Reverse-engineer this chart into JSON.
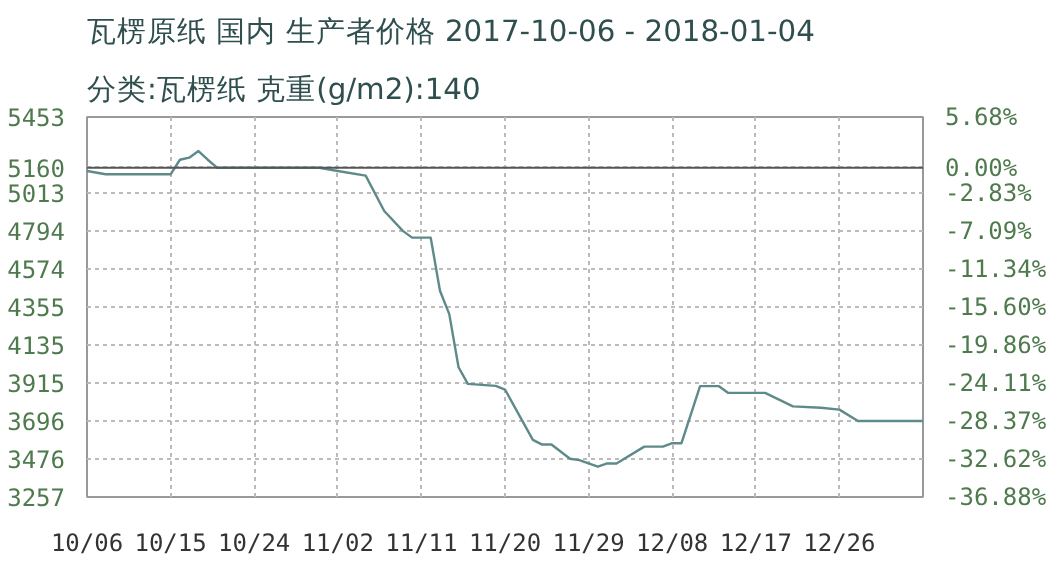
{
  "chart_data": {
    "type": "line",
    "title": "瓦楞原纸 国内 生产者价格 2017-10-06 - 2018-01-04",
    "subtitle": "分类:瓦楞纸 克重(g/m2):140",
    "x": [
      "2017-10-06",
      "2017-10-08",
      "2017-10-15",
      "2017-10-16",
      "2017-10-17",
      "2017-10-18",
      "2017-10-19",
      "2017-10-20",
      "2017-10-31",
      "2017-11-02",
      "2017-11-05",
      "2017-11-07",
      "2017-11-09",
      "2017-11-10",
      "2017-11-12",
      "2017-11-13",
      "2017-11-14",
      "2017-11-15",
      "2017-11-16",
      "2017-11-19",
      "2017-11-20",
      "2017-11-23",
      "2017-11-24",
      "2017-11-25",
      "2017-11-27",
      "2017-11-28",
      "2017-11-30",
      "2017-12-01",
      "2017-12-02",
      "2017-12-05",
      "2017-12-07",
      "2017-12-08",
      "2017-12-09",
      "2017-12-11",
      "2017-12-13",
      "2017-12-14",
      "2017-12-18",
      "2017-12-21",
      "2017-12-24",
      "2017-12-26",
      "2017-12-28",
      "2018-01-04"
    ],
    "series": [
      {
        "color": "#5f8a8a",
        "values": [
          5141,
          5122,
          5122,
          5206,
          5218,
          5256,
          5206,
          5160,
          5160,
          5141,
          5114,
          4910,
          4795,
          4756,
          4756,
          4449,
          4314,
          4007,
          3911,
          3899,
          3878,
          3587,
          3560,
          3560,
          3478,
          3470,
          3432,
          3451,
          3451,
          3548,
          3548,
          3568,
          3568,
          3898,
          3898,
          3859,
          3859,
          3781,
          3773,
          3762,
          3696,
          3696
        ]
      }
    ],
    "xlim": [
      "2017-10-06",
      "2018-01-04"
    ],
    "xticks": [
      {
        "value": "2017-10-06",
        "label": "10/06"
      },
      {
        "value": "2017-10-15",
        "label": "10/15"
      },
      {
        "value": "2017-10-24",
        "label": "10/24"
      },
      {
        "value": "2017-11-02",
        "label": "11/02"
      },
      {
        "value": "2017-11-11",
        "label": "11/11"
      },
      {
        "value": "2017-11-20",
        "label": "11/20"
      },
      {
        "value": "2017-11-29",
        "label": "11/29"
      },
      {
        "value": "2017-12-08",
        "label": "12/08"
      },
      {
        "value": "2017-12-17",
        "label": "12/17"
      },
      {
        "value": "2017-12-26",
        "label": "12/26"
      }
    ],
    "ylim": [
      3257,
      5453
    ],
    "yticks": [
      3257,
      3476,
      3696,
      3915,
      4135,
      4355,
      4574,
      4794,
      5013,
      5160,
      5453
    ],
    "y2lim": [
      -36.88,
      5.68
    ],
    "y2ticks": [
      {
        "value": -36.88,
        "label": "-36.88%"
      },
      {
        "value": -32.62,
        "label": "-32.62%"
      },
      {
        "value": -28.37,
        "label": "-28.37%"
      },
      {
        "value": -24.11,
        "label": "-24.11%"
      },
      {
        "value": -19.86,
        "label": "-19.86%"
      },
      {
        "value": -15.6,
        "label": "-15.60%"
      },
      {
        "value": -11.34,
        "label": "-11.34%"
      },
      {
        "value": -7.09,
        "label": "-7.09%"
      },
      {
        "value": -2.83,
        "label": "-2.83%"
      },
      {
        "value": 0.0,
        "label": "0.00%"
      },
      {
        "value": 5.68,
        "label": "5.68%"
      }
    ],
    "ref_lines": [
      {
        "axis": "y",
        "value": 5160,
        "color": "#555555",
        "line_style": "solid"
      }
    ],
    "grid": true,
    "line_style": "solid"
  }
}
